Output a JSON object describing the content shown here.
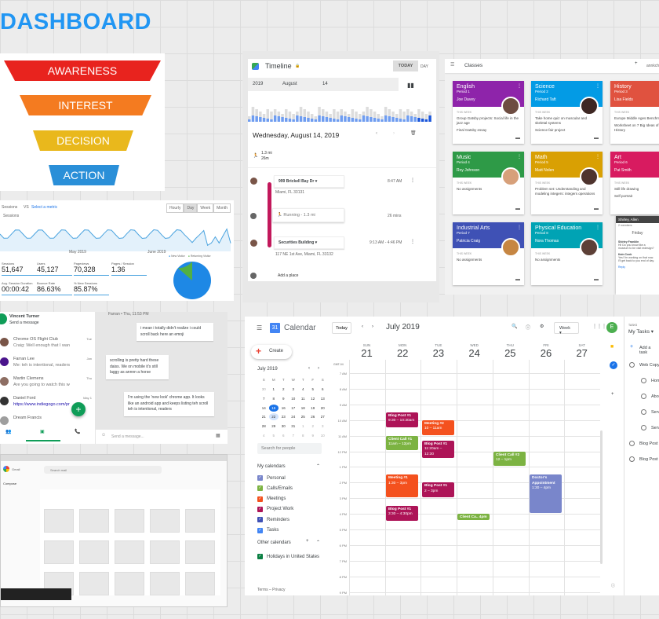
{
  "title": "DASHBOARD",
  "funnel": {
    "stages": [
      {
        "label": "AWARENESS",
        "color": "#e8231e"
      },
      {
        "label": "INTEREST",
        "color": "#f47b20"
      },
      {
        "label": "DECISION",
        "color": "#e9b81c"
      },
      {
        "label": "ACTION",
        "color": "#2a8fd8"
      }
    ]
  },
  "analytics": {
    "selector": "Sessions",
    "vs": "VS",
    "select_metric": "Select a metric",
    "metric_legend": "Sessions",
    "periods": [
      "Hourly",
      "Day",
      "Week",
      "Month"
    ],
    "active_period": "Day",
    "x_labels": [
      "May 2019",
      "June 2019"
    ],
    "stats": [
      {
        "label": "Sessions",
        "value": "51,647"
      },
      {
        "label": "Users",
        "value": "45,127"
      },
      {
        "label": "Pageviews",
        "value": "70,328"
      },
      {
        "label": "Pages / Session",
        "value": "1.36"
      },
      {
        "label": "Avg. Session Duration",
        "value": "00:00:42"
      },
      {
        "label": "Bounce Rate",
        "value": "86.63%"
      },
      {
        "label": "% New Sessions",
        "value": "85.87%"
      }
    ],
    "pie_legend": [
      {
        "label": "New Visitor",
        "color": "#1e88e5"
      },
      {
        "label": "Returning Visitor",
        "color": "#52b043"
      }
    ],
    "pie_new_percent": 86.4
  },
  "timeline": {
    "title": "Timeline",
    "today": "TODAY",
    "today_alt": "DAY",
    "year": "2019",
    "month": "August",
    "day": "14",
    "date": "Wednesday, August 14, 2019",
    "distance": "1.3 mi",
    "duration": "26m",
    "places": [
      {
        "name": "999 Brickell Bay Dr",
        "address": "Miami, FL 33131",
        "time": "8:47 AM"
      },
      {
        "name": "Securities Building",
        "address": "117 NE 1st Ave, Miami, FL 33132",
        "time": "9:13 AM - 4:46 PM"
      }
    ],
    "activity": {
      "label": "Running",
      "distance": " - 1.3 mi",
      "time": "26 mins"
    },
    "add_place": "Add a place"
  },
  "classroom": {
    "title": "Classes",
    "user": "annkchen",
    "classes": [
      {
        "name": "English",
        "period": "Period 1",
        "teacher": "Joe Davey",
        "color": "#8e24aa",
        "items": [
          "Group Gatsby projects: Social life in the jazz age",
          "Final Gatsby essay"
        ]
      },
      {
        "name": "Science",
        "period": "Period 2",
        "teacher": "Richard Taft",
        "color": "#039be5",
        "items": [
          "Take home quiz on muscular and skeletal systems",
          "Science fair project"
        ]
      },
      {
        "name": "History",
        "period": "Period 3",
        "teacher": "Lisa Fields",
        "color": "#e0523f",
        "items": [
          "Europe Middle Ages Benchmark",
          "Worksheet on 7 Big Ideas of Western History"
        ]
      },
      {
        "name": "Music",
        "period": "Period 4",
        "teacher": "Roy Johnson",
        "color": "#2e9a47",
        "items": [
          "No assignments"
        ]
      },
      {
        "name": "Math",
        "period": "Period 5",
        "teacher": "Matt Nolen",
        "color": "#d9a003",
        "items": [
          "Problem set: Understanding and modeling integers: integers operations"
        ]
      },
      {
        "name": "Art",
        "period": "Period 6",
        "teacher": "Pat Smith",
        "color": "#d81b60",
        "items": [
          "Still life drawing",
          "Self portrait"
        ]
      },
      {
        "name": "Industrial Arts",
        "period": "Period 7",
        "teacher": "Patricia Craig",
        "color": "#3f51b5",
        "items": [
          "No assignments"
        ]
      },
      {
        "name": "Physical Education",
        "period": "Period 8",
        "teacher": "Nora Thomas",
        "color": "#00a3b4",
        "items": [
          "No assignments"
        ]
      }
    ],
    "this_week": "THIS WEEK",
    "chat": {
      "title": "Shirley, Allen",
      "comments": "2 members",
      "day": "Friday",
      "messages": [
        {
          "name": "Shirley Franklin",
          "text": "Hi! Do you know like a museum to be visit redesign?"
        },
        {
          "name": "Kain Cook",
          "text": "Yes! I'm working on that now. I'll get back to you end of day."
        }
      ],
      "reply": "Reply"
    }
  },
  "hangouts": {
    "me": "Vincent Turner",
    "me_status": "Send a message",
    "conversations": [
      {
        "name": "Chrome OS Flight Club",
        "preview": "Craig: Well enough that I wanted to expand to",
        "time": "Tue"
      },
      {
        "name": "Farran Lee",
        "preview": "Me: teh is intentional, readers",
        "time": "Jan"
      },
      {
        "name": "Martin Clemens",
        "preview": "Are you going to watch this weekend?",
        "time": "Thu"
      },
      {
        "name": "Daniel Ford",
        "preview": "https://www.indiegogo.com/projects/...",
        "time": "May 1"
      },
      {
        "name": "Dream Francis",
        "preview": "",
        "time": ""
      }
    ],
    "messages": [
      {
        "text": "i mean i totally didn't realize i could scroll back here an emoji",
        "mine": true
      },
      {
        "text": "scrolling is pretty hard these daiss. We on mobile it's still laggy as annnn a horse",
        "mine": false
      },
      {
        "text": "I'm using the 'new look' chrome app. It looks like an android app and keeps listing teh scroll teh is intentional, readers",
        "mine": true
      }
    ],
    "header_time": "Farran • Thu, 11:53 PM",
    "compose_placeholder": "Send a message..."
  },
  "gmail": {
    "app": "Gmail",
    "search": "Search mail",
    "compose": "Compose"
  },
  "calendar": {
    "app": "Calendar",
    "icon_day": "31",
    "today": "Today",
    "month_label": "July 2019",
    "view": "Week",
    "avatar": "E",
    "create": "Create",
    "timezone": "GMT-04",
    "days": [
      {
        "name": "SUN",
        "num": "21"
      },
      {
        "name": "MON",
        "num": "22"
      },
      {
        "name": "TUE",
        "num": "23"
      },
      {
        "name": "WED",
        "num": "24"
      },
      {
        "name": "THU",
        "num": "25"
      },
      {
        "name": "FRI",
        "num": "26"
      },
      {
        "name": "SAT",
        "num": "27"
      }
    ],
    "hours": [
      "7 AM",
      "8 AM",
      "9 AM",
      "10 AM",
      "11 AM",
      "12 PM",
      "1 PM",
      "2 PM",
      "3 PM",
      "4 PM",
      "5 PM",
      "6 PM",
      "7 PM",
      "8 PM",
      "9 PM"
    ],
    "mini": {
      "title": "July 2019",
      "weekdays": [
        "S",
        "M",
        "T",
        "W",
        "T",
        "F",
        "S"
      ],
      "weeks": [
        [
          "30",
          "1",
          "2",
          "3",
          "4",
          "5",
          "6"
        ],
        [
          "7",
          "8",
          "9",
          "10",
          "11",
          "12",
          "13"
        ],
        [
          "14",
          "15",
          "16",
          "17",
          "18",
          "19",
          "20"
        ],
        [
          "21",
          "22",
          "23",
          "24",
          "25",
          "26",
          "27"
        ],
        [
          "28",
          "29",
          "30",
          "31",
          "1",
          "2",
          "3"
        ],
        [
          "4",
          "5",
          "6",
          "7",
          "8",
          "9",
          "10"
        ]
      ],
      "today": "15",
      "selected": "22"
    },
    "search_people": "Search for people",
    "my_calendars": "My calendars",
    "calendars": [
      {
        "label": "Personal",
        "color": "#7986cb"
      },
      {
        "label": "Calls/Emails",
        "color": "#7cb342"
      },
      {
        "label": "Meetings",
        "color": "#f4511e"
      },
      {
        "label": "Project Work",
        "color": "#ad1457"
      },
      {
        "label": "Reminders",
        "color": "#3f51b5"
      },
      {
        "label": "Tasks",
        "color": "#4285f4"
      }
    ],
    "other_calendars": "Other calendars",
    "other": [
      {
        "label": "Holidays in United States",
        "color": "#0b8043"
      }
    ],
    "footer": "Terms – Privacy",
    "events": [
      {
        "title": "Blog Post #1",
        "time": "9:30 – 10:30am",
        "day": "MON",
        "start": 9.5,
        "end": 10.5,
        "color": "#ad1457"
      },
      {
        "title": "Meeting #2",
        "time": "10 – 11am",
        "day": "TUE",
        "start": 10,
        "end": 11,
        "color": "#f4511e"
      },
      {
        "title": "Client Call #1",
        "time": "11am – 12pm",
        "day": "MON",
        "start": 11,
        "end": 12,
        "color": "#7cb342"
      },
      {
        "title": "Blog Post #1",
        "time": "11:20am – 12:30",
        "day": "TUE",
        "start": 11.33,
        "end": 12.5,
        "color": "#ad1457"
      },
      {
        "title": "Client Call #2",
        "time": "12 – 1pm",
        "day": "THU",
        "start": 12,
        "end": 13,
        "color": "#7cb342"
      },
      {
        "title": "Meeting #1",
        "time": "1:30 – 3pm",
        "day": "MON",
        "start": 13.5,
        "end": 15,
        "color": "#f4511e"
      },
      {
        "title": "Blog Post #1",
        "time": "2 – 3pm",
        "day": "TUE",
        "start": 14,
        "end": 15,
        "color": "#ad1457"
      },
      {
        "title": "Doctor's Appointment",
        "time": "1:30 – 4pm",
        "day": "FRI",
        "start": 13.5,
        "end": 16,
        "color": "#7986cb"
      },
      {
        "title": "Blog Post #1",
        "time": "3:30 – 4:30pm",
        "day": "MON",
        "start": 15.5,
        "end": 16.5,
        "color": "#ad1457"
      },
      {
        "title": "Client Ca.. 4pm",
        "time": "",
        "day": "WED",
        "start": 16,
        "end": 16.45,
        "color": "#7cb342"
      }
    ]
  },
  "tasks": {
    "header": "TASKS",
    "list": "My Tasks",
    "add": "Add a task",
    "items": [
      {
        "label": "Web Copy",
        "indent": false
      },
      {
        "label": "Home",
        "indent": true
      },
      {
        "label": "About",
        "indent": true
      },
      {
        "label": "Services",
        "indent": true
      },
      {
        "label": "Services",
        "indent": true
      },
      {
        "label": "Blog Post",
        "indent": false
      },
      {
        "label": "Blog Post",
        "indent": false
      }
    ]
  }
}
